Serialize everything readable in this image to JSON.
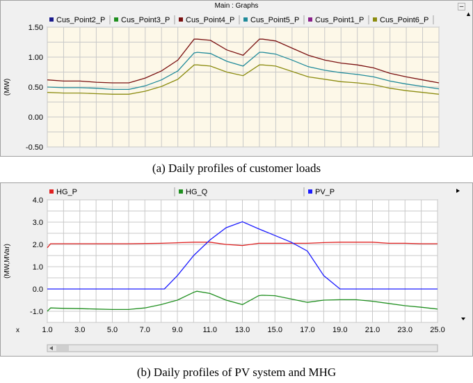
{
  "window": {
    "title": "Main : Graphs",
    "minimize_glyph": "–",
    "arrow_glyph": "▲"
  },
  "captions": {
    "a": "(a) Daily profiles of customer loads",
    "b": "(b) Daily profiles of PV system and MHG"
  },
  "chart_data": [
    {
      "type": "line",
      "ylabel": "(MW)",
      "ylim": [
        -0.5,
        1.5
      ],
      "yticks": [
        "1.50",
        "1.00",
        "0.50",
        "0.00",
        "-0.50"
      ],
      "ytick_values": [
        1.5,
        1.0,
        0.5,
        0.0,
        -0.5
      ],
      "xlim": [
        1.0,
        25.0
      ],
      "grid": true,
      "background": "#fdf8e8",
      "legend": [
        {
          "name": "Cus_Point2_P",
          "color": "#1a1a8c"
        },
        {
          "name": "Cus_Point3_P",
          "color": "#1f8f1f"
        },
        {
          "name": "Cus_Point4_P",
          "color": "#7a1010"
        },
        {
          "name": "Cus_Point5_P",
          "color": "#1f8a9a"
        },
        {
          "name": "Cus_Point1_P",
          "color": "#8a1f8a"
        },
        {
          "name": "Cus_Point6_P",
          "color": "#8c8c10"
        }
      ],
      "series": [
        {
          "name": "Cus_Point4_P",
          "color": "#7a1010",
          "x": [
            1,
            2,
            3,
            4,
            5,
            6,
            7,
            8,
            9,
            10,
            10.2,
            11,
            12,
            13,
            14,
            14.2,
            15,
            16,
            17,
            18,
            19,
            20,
            21,
            22,
            23,
            24,
            25
          ],
          "y": [
            0.62,
            0.6,
            0.6,
            0.58,
            0.57,
            0.57,
            0.65,
            0.77,
            0.95,
            1.3,
            1.3,
            1.28,
            1.12,
            1.03,
            1.3,
            1.3,
            1.27,
            1.15,
            1.03,
            0.95,
            0.9,
            0.87,
            0.82,
            0.73,
            0.67,
            0.62,
            0.57
          ]
        },
        {
          "name": "Cus_Point5_P",
          "color": "#1f8a9a",
          "x": [
            1,
            2,
            3,
            4,
            5,
            6,
            7,
            8,
            9,
            10,
            10.2,
            11,
            12,
            13,
            14,
            14.2,
            15,
            16,
            17,
            18,
            19,
            20,
            21,
            22,
            23,
            24,
            25
          ],
          "y": [
            0.5,
            0.49,
            0.49,
            0.48,
            0.46,
            0.46,
            0.52,
            0.62,
            0.77,
            1.07,
            1.08,
            1.06,
            0.93,
            0.85,
            1.08,
            1.08,
            1.05,
            0.95,
            0.84,
            0.78,
            0.74,
            0.71,
            0.67,
            0.6,
            0.55,
            0.51,
            0.47
          ]
        },
        {
          "name": "Cus_Point6_P",
          "color": "#8c8c10",
          "x": [
            1,
            2,
            3,
            4,
            5,
            6,
            7,
            8,
            9,
            10,
            10.2,
            11,
            12,
            13,
            14,
            14.2,
            15,
            16,
            17,
            18,
            19,
            20,
            21,
            22,
            23,
            24,
            25
          ],
          "y": [
            0.41,
            0.4,
            0.4,
            0.39,
            0.38,
            0.38,
            0.43,
            0.51,
            0.63,
            0.87,
            0.87,
            0.85,
            0.75,
            0.69,
            0.87,
            0.87,
            0.85,
            0.76,
            0.67,
            0.63,
            0.59,
            0.57,
            0.54,
            0.48,
            0.44,
            0.41,
            0.38
          ]
        }
      ]
    },
    {
      "type": "line",
      "ylabel": "(MW,MVar)",
      "ylim": [
        -1.5,
        4.0
      ],
      "yticks": [
        "4.0",
        "3.0",
        "2.0",
        "1.0",
        "0.0",
        "-1.0"
      ],
      "ytick_values": [
        4.0,
        3.0,
        2.0,
        1.0,
        0.0,
        -1.0
      ],
      "xlabel": "x",
      "xlim": [
        1.0,
        25.0
      ],
      "xticks": [
        "1.0",
        "3.0",
        "5.0",
        "7.0",
        "9.0",
        "11.0",
        "13.0",
        "15.0",
        "17.0",
        "19.0",
        "21.0",
        "23.0",
        "25.0"
      ],
      "xtick_values": [
        1,
        3,
        5,
        7,
        9,
        11,
        13,
        15,
        17,
        19,
        21,
        23,
        25
      ],
      "grid": true,
      "background": "#ffffff",
      "legend": [
        {
          "name": "HG_P",
          "color": "#e02020"
        },
        {
          "name": "HG_Q",
          "color": "#1f8f1f"
        },
        {
          "name": "PV_P",
          "color": "#1a1aff"
        }
      ],
      "series": [
        {
          "name": "HG_P",
          "color": "#e02020",
          "x": [
            1,
            1.2,
            2,
            4,
            6,
            8,
            10,
            11,
            12,
            13,
            14,
            15,
            16,
            17,
            18,
            19,
            20,
            21,
            22,
            23,
            24,
            25
          ],
          "y": [
            1.85,
            2.03,
            2.03,
            2.03,
            2.03,
            2.05,
            2.1,
            2.1,
            2.0,
            1.95,
            2.05,
            2.05,
            2.05,
            2.05,
            2.08,
            2.1,
            2.1,
            2.1,
            2.05,
            2.05,
            2.03,
            2.03
          ]
        },
        {
          "name": "HG_Q",
          "color": "#1f8f1f",
          "x": [
            1,
            1.2,
            2,
            3,
            4,
            5,
            6,
            7,
            8,
            9,
            10,
            10.2,
            11,
            12,
            13,
            14,
            14.2,
            15,
            16,
            17,
            18,
            19,
            20,
            21,
            22,
            23,
            24,
            25
          ],
          "y": [
            -1.0,
            -0.85,
            -0.87,
            -0.88,
            -0.9,
            -0.92,
            -0.92,
            -0.85,
            -0.7,
            -0.5,
            -0.15,
            -0.1,
            -0.2,
            -0.5,
            -0.7,
            -0.3,
            -0.28,
            -0.3,
            -0.45,
            -0.6,
            -0.5,
            -0.48,
            -0.48,
            -0.55,
            -0.65,
            -0.75,
            -0.82,
            -0.9
          ]
        },
        {
          "name": "PV_P",
          "color": "#1a1aff",
          "x": [
            1,
            2,
            4,
            6,
            8,
            8.2,
            9,
            10,
            11,
            12,
            13,
            14,
            15,
            16,
            17,
            18,
            19,
            20,
            22,
            24,
            25
          ],
          "y": [
            0.0,
            0.0,
            0.0,
            0.0,
            0.0,
            0.0,
            0.6,
            1.5,
            2.2,
            2.75,
            3.02,
            2.7,
            2.4,
            2.1,
            1.7,
            0.6,
            0.0,
            0.0,
            0.0,
            0.0,
            0.0
          ]
        }
      ]
    }
  ]
}
